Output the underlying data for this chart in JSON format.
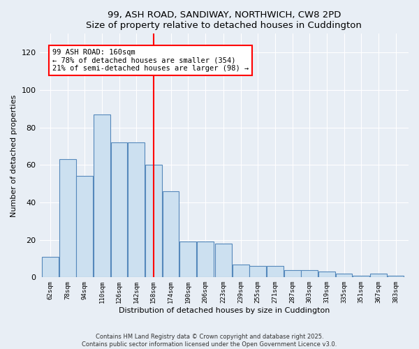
{
  "title": "99, ASH ROAD, SANDIWAY, NORTHWICH, CW8 2PD",
  "subtitle": "Size of property relative to detached houses in Cuddington",
  "xlabel": "Distribution of detached houses by size in Cuddington",
  "ylabel": "Number of detached properties",
  "bar_labels": [
    "62sqm",
    "78sqm",
    "94sqm",
    "110sqm",
    "126sqm",
    "142sqm",
    "158sqm",
    "174sqm",
    "190sqm",
    "206sqm",
    "223sqm",
    "239sqm",
    "255sqm",
    "271sqm",
    "287sqm",
    "303sqm",
    "319sqm",
    "335sqm",
    "351sqm",
    "367sqm",
    "383sqm"
  ],
  "bar_values": [
    11,
    63,
    54,
    87,
    72,
    72,
    60,
    46,
    19,
    19,
    18,
    7,
    6,
    6,
    4,
    4,
    3,
    2,
    1,
    2,
    1
  ],
  "bar_color": "#cce0f0",
  "bar_edge_color": "#5588bb",
  "ylim": [
    0,
    130
  ],
  "yticks": [
    0,
    20,
    40,
    60,
    80,
    100,
    120
  ],
  "vline_color": "red",
  "annotation_text": "99 ASH ROAD: 160sqm\n← 78% of detached houses are smaller (354)\n21% of semi-detached houses are larger (98) →",
  "annotation_box_color": "white",
  "annotation_box_edge_color": "red",
  "footer_line1": "Contains HM Land Registry data © Crown copyright and database right 2025.",
  "footer_line2": "Contains public sector information licensed under the Open Government Licence v3.0.",
  "bg_color": "#e8eef5",
  "plot_bg_color": "#e8eef5"
}
